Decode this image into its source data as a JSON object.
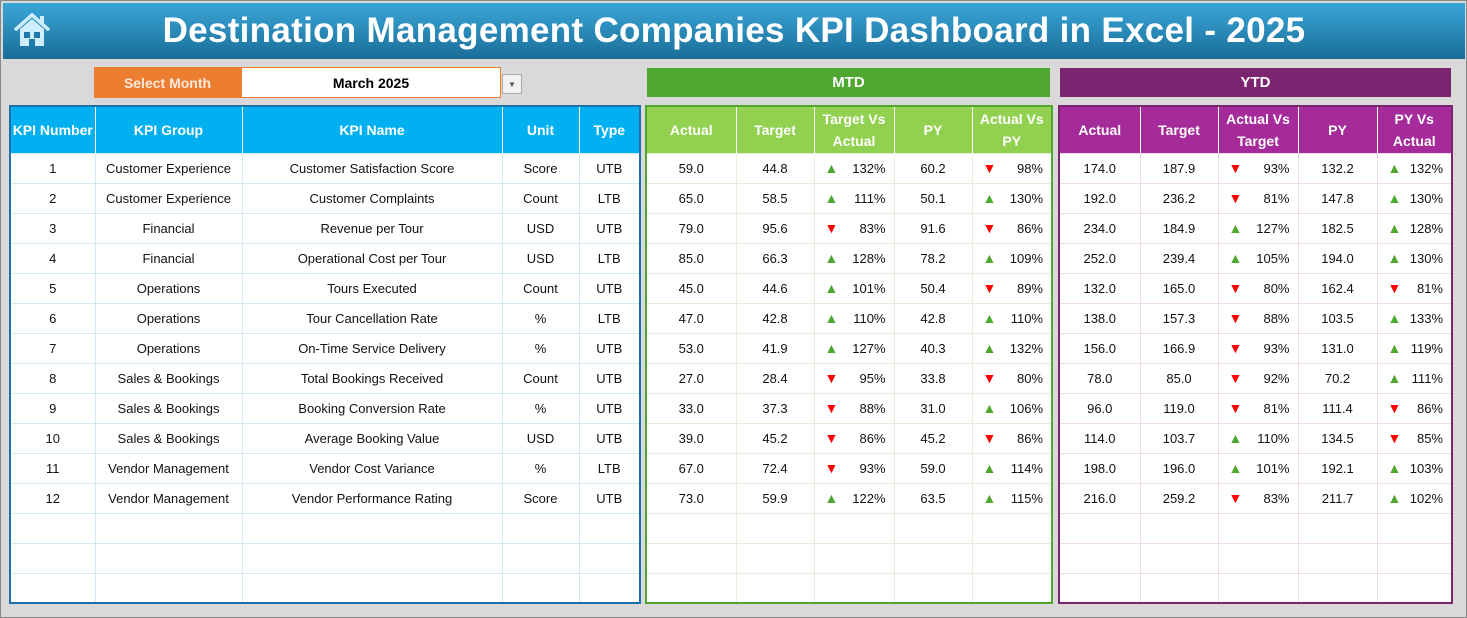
{
  "header": {
    "title": "Destination Management Companies KPI Dashboard in Excel - 2025",
    "icon": "home-icon"
  },
  "selector": {
    "label": "Select Month",
    "value": "March 2025"
  },
  "sections": {
    "mtd": "MTD",
    "ytd": "YTD"
  },
  "colors": {
    "title_bar": "#1a6d98",
    "select_label": "#ed7d31",
    "kpi_header": "#00b0f0",
    "mtd_section": "#4ea72e",
    "mtd_header": "#92d050",
    "ytd_section": "#7b2470",
    "ytd_header": "#a52a9a",
    "up": "#4ea72e",
    "down": "#ff0000"
  },
  "left_headers": [
    "KPI Number",
    "KPI Group",
    "KPI Name",
    "Unit",
    "Type"
  ],
  "mtd_headers": [
    "Actual",
    "Target",
    "Target Vs Actual",
    "PY",
    "Actual Vs PY"
  ],
  "ytd_headers": [
    "Actual",
    "Target",
    "Actual Vs Target",
    "PY",
    "PY Vs Actual"
  ],
  "rows": [
    {
      "num": "1",
      "group": "Customer Experience",
      "name": "Customer Satisfaction Score",
      "unit": "Score",
      "type": "UTB",
      "mtd": {
        "actual": "59.0",
        "target": "44.8",
        "tva": "132%",
        "tva_dir": "up",
        "py": "60.2",
        "avp": "98%",
        "avp_dir": "down"
      },
      "ytd": {
        "actual": "174.0",
        "target": "187.9",
        "avt": "93%",
        "avt_dir": "down",
        "py": "132.2",
        "pva": "132%",
        "pva_dir": "up"
      }
    },
    {
      "num": "2",
      "group": "Customer Experience",
      "name": "Customer Complaints",
      "unit": "Count",
      "type": "LTB",
      "mtd": {
        "actual": "65.0",
        "target": "58.5",
        "tva": "111%",
        "tva_dir": "up",
        "py": "50.1",
        "avp": "130%",
        "avp_dir": "up"
      },
      "ytd": {
        "actual": "192.0",
        "target": "236.2",
        "avt": "81%",
        "avt_dir": "down",
        "py": "147.8",
        "pva": "130%",
        "pva_dir": "up"
      }
    },
    {
      "num": "3",
      "group": "Financial",
      "name": "Revenue per Tour",
      "unit": "USD",
      "type": "UTB",
      "mtd": {
        "actual": "79.0",
        "target": "95.6",
        "tva": "83%",
        "tva_dir": "down",
        "py": "91.6",
        "avp": "86%",
        "avp_dir": "down"
      },
      "ytd": {
        "actual": "234.0",
        "target": "184.9",
        "avt": "127%",
        "avt_dir": "up",
        "py": "182.5",
        "pva": "128%",
        "pva_dir": "up"
      }
    },
    {
      "num": "4",
      "group": "Financial",
      "name": "Operational Cost per Tour",
      "unit": "USD",
      "type": "LTB",
      "mtd": {
        "actual": "85.0",
        "target": "66.3",
        "tva": "128%",
        "tva_dir": "up",
        "py": "78.2",
        "avp": "109%",
        "avp_dir": "up"
      },
      "ytd": {
        "actual": "252.0",
        "target": "239.4",
        "avt": "105%",
        "avt_dir": "up",
        "py": "194.0",
        "pva": "130%",
        "pva_dir": "up"
      }
    },
    {
      "num": "5",
      "group": "Operations",
      "name": "Tours Executed",
      "unit": "Count",
      "type": "UTB",
      "mtd": {
        "actual": "45.0",
        "target": "44.6",
        "tva": "101%",
        "tva_dir": "up",
        "py": "50.4",
        "avp": "89%",
        "avp_dir": "down"
      },
      "ytd": {
        "actual": "132.0",
        "target": "165.0",
        "avt": "80%",
        "avt_dir": "down",
        "py": "162.4",
        "pva": "81%",
        "pva_dir": "down"
      }
    },
    {
      "num": "6",
      "group": "Operations",
      "name": "Tour Cancellation Rate",
      "unit": "%",
      "type": "LTB",
      "mtd": {
        "actual": "47.0",
        "target": "42.8",
        "tva": "110%",
        "tva_dir": "up",
        "py": "42.8",
        "avp": "110%",
        "avp_dir": "up"
      },
      "ytd": {
        "actual": "138.0",
        "target": "157.3",
        "avt": "88%",
        "avt_dir": "down",
        "py": "103.5",
        "pva": "133%",
        "pva_dir": "up"
      }
    },
    {
      "num": "7",
      "group": "Operations",
      "name": "On-Time Service Delivery",
      "unit": "%",
      "type": "UTB",
      "mtd": {
        "actual": "53.0",
        "target": "41.9",
        "tva": "127%",
        "tva_dir": "up",
        "py": "40.3",
        "avp": "132%",
        "avp_dir": "up"
      },
      "ytd": {
        "actual": "156.0",
        "target": "166.9",
        "avt": "93%",
        "avt_dir": "down",
        "py": "131.0",
        "pva": "119%",
        "pva_dir": "up"
      }
    },
    {
      "num": "8",
      "group": "Sales & Bookings",
      "name": "Total Bookings Received",
      "unit": "Count",
      "type": "UTB",
      "mtd": {
        "actual": "27.0",
        "target": "28.4",
        "tva": "95%",
        "tva_dir": "down",
        "py": "33.8",
        "avp": "80%",
        "avp_dir": "down"
      },
      "ytd": {
        "actual": "78.0",
        "target": "85.0",
        "avt": "92%",
        "avt_dir": "down",
        "py": "70.2",
        "pva": "111%",
        "pva_dir": "up"
      }
    },
    {
      "num": "9",
      "group": "Sales & Bookings",
      "name": "Booking Conversion Rate",
      "unit": "%",
      "type": "UTB",
      "mtd": {
        "actual": "33.0",
        "target": "37.3",
        "tva": "88%",
        "tva_dir": "down",
        "py": "31.0",
        "avp": "106%",
        "avp_dir": "up"
      },
      "ytd": {
        "actual": "96.0",
        "target": "119.0",
        "avt": "81%",
        "avt_dir": "down",
        "py": "111.4",
        "pva": "86%",
        "pva_dir": "down"
      }
    },
    {
      "num": "10",
      "group": "Sales & Bookings",
      "name": "Average Booking Value",
      "unit": "USD",
      "type": "UTB",
      "mtd": {
        "actual": "39.0",
        "target": "45.2",
        "tva": "86%",
        "tva_dir": "down",
        "py": "45.2",
        "avp": "86%",
        "avp_dir": "down"
      },
      "ytd": {
        "actual": "114.0",
        "target": "103.7",
        "avt": "110%",
        "avt_dir": "up",
        "py": "134.5",
        "pva": "85%",
        "pva_dir": "down"
      }
    },
    {
      "num": "11",
      "group": "Vendor Management",
      "name": "Vendor Cost Variance",
      "unit": "%",
      "type": "LTB",
      "mtd": {
        "actual": "67.0",
        "target": "72.4",
        "tva": "93%",
        "tva_dir": "down",
        "py": "59.0",
        "avp": "114%",
        "avp_dir": "up"
      },
      "ytd": {
        "actual": "198.0",
        "target": "196.0",
        "avt": "101%",
        "avt_dir": "up",
        "py": "192.1",
        "pva": "103%",
        "pva_dir": "up"
      }
    },
    {
      "num": "12",
      "group": "Vendor Management",
      "name": "Vendor Performance Rating",
      "unit": "Score",
      "type": "UTB",
      "mtd": {
        "actual": "73.0",
        "target": "59.9",
        "tva": "122%",
        "tva_dir": "up",
        "py": "63.5",
        "avp": "115%",
        "avp_dir": "up"
      },
      "ytd": {
        "actual": "216.0",
        "target": "259.2",
        "avt": "83%",
        "avt_dir": "down",
        "py": "211.7",
        "pva": "102%",
        "pva_dir": "up"
      }
    }
  ]
}
